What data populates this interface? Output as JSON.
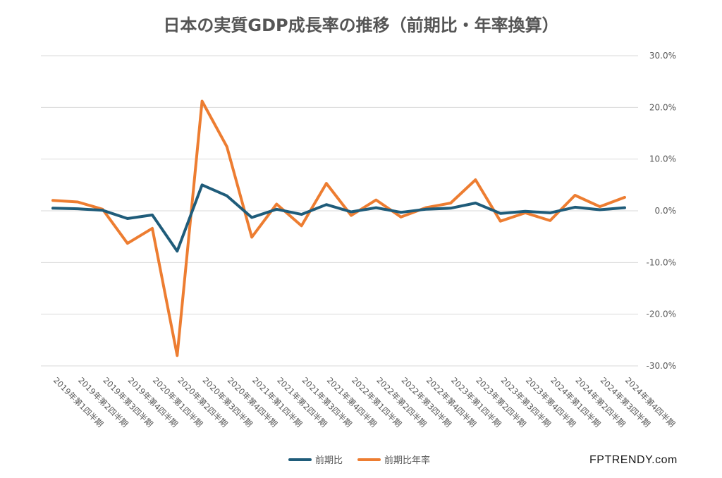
{
  "chart_data": {
    "type": "line",
    "title": "日本の実質GDP成長率の推移（前期比・年率換算）",
    "categories": [
      "2019年第1四半期",
      "2019年第2四半期",
      "2019年第3四半期",
      "2019年第4四半期",
      "2020年第1四半期",
      "2020年第2四半期",
      "2020年第3四半期",
      "2020年第4四半期",
      "2021年第1四半期",
      "2021年第2四半期",
      "2021年第3四半期",
      "2021年第4四半期",
      "2022年第1四半期",
      "2022年第2四半期",
      "2022年第3四半期",
      "2022年第4四半期",
      "2023年第1四半期",
      "2023年第2四半期",
      "2023年第3四半期",
      "2023年第4四半期",
      "2024年第1四半期",
      "2024年第2四半期",
      "2024年第3四半期",
      "2024年第4四半期"
    ],
    "series": [
      {
        "name": "前期比",
        "color": "#1f5c7a",
        "values": [
          0.5,
          0.4,
          0.1,
          -1.5,
          -0.8,
          -7.8,
          5.0,
          2.9,
          -1.3,
          0.3,
          -0.7,
          1.2,
          -0.2,
          0.6,
          -0.3,
          0.3,
          0.5,
          1.5,
          -0.5,
          -0.1,
          -0.4,
          0.7,
          0.2,
          0.6
        ]
      },
      {
        "name": "前期比年率",
        "color": "#ed7d31",
        "values": [
          2.0,
          1.7,
          0.3,
          -6.3,
          -3.4,
          -28.0,
          21.2,
          12.4,
          -5.1,
          1.3,
          -2.9,
          5.3,
          -0.9,
          2.1,
          -1.2,
          0.6,
          1.5,
          6.0,
          -2.0,
          -0.4,
          -1.9,
          3.0,
          0.8,
          2.6
        ]
      }
    ],
    "ytick_labels": [
      "30.0%",
      "20.0%",
      "10.0%",
      "0.0%",
      "-10.0%",
      "-20.0%",
      "-30.0%"
    ],
    "ylim": [
      -30,
      30
    ],
    "ystep": 10,
    "grid": true,
    "legend_position": "bottom"
  },
  "watermark": "FPTRENDY.com"
}
